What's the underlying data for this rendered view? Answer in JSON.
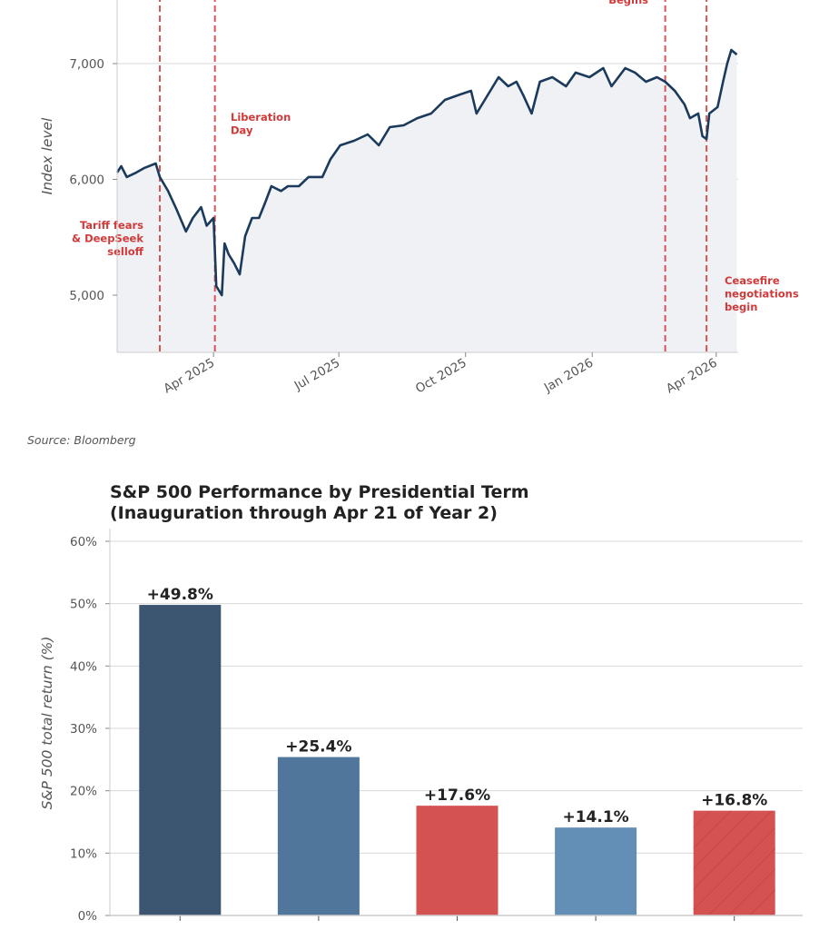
{
  "chart_data": [
    {
      "type": "line",
      "title": "",
      "xlabel": "",
      "ylabel": "Index level",
      "xlim": [
        "2025-01-21",
        "2026-04-17"
      ],
      "ylim": [
        4500,
        7550
      ],
      "grid": true,
      "yticks": [
        5000,
        6000,
        7000
      ],
      "ytick_labels": [
        "5,000",
        "6,000",
        "7,000"
      ],
      "xticks": [
        "2025-04-01",
        "2025-07-01",
        "2025-10-01",
        "2026-01-01",
        "2026-04-01"
      ],
      "xtick_labels": [
        "Apr 2025",
        "Jul 2025",
        "Oct 2025",
        "Jan 2026",
        "Apr 2026"
      ],
      "line_color": "#1b3a5c",
      "fill_color": "#eff1f4",
      "annotation_color": "#d03a3a",
      "series": [
        {
          "x": [
            "2025-01-21",
            "2025-01-24",
            "2025-01-28",
            "2025-02-04",
            "2025-02-10",
            "2025-02-18",
            "2025-02-21",
            "2025-02-27",
            "2025-03-05",
            "2025-03-12",
            "2025-03-17",
            "2025-03-23",
            "2025-03-27",
            "2025-04-01",
            "2025-04-03",
            "2025-04-07",
            "2025-04-09",
            "2025-04-12",
            "2025-04-16",
            "2025-04-20",
            "2025-04-24",
            "2025-04-29",
            "2025-05-04",
            "2025-05-08",
            "2025-05-13",
            "2025-05-20",
            "2025-05-25",
            "2025-06-02",
            "2025-06-09",
            "2025-06-19",
            "2025-06-25",
            "2025-07-02",
            "2025-07-12",
            "2025-07-22",
            "2025-07-30",
            "2025-08-07",
            "2025-08-17",
            "2025-08-27",
            "2025-09-06",
            "2025-09-16",
            "2025-09-25",
            "2025-10-05",
            "2025-10-09",
            "2025-10-15",
            "2025-10-25",
            "2025-11-01",
            "2025-11-07",
            "2025-11-12",
            "2025-11-18",
            "2025-11-24",
            "2025-12-03",
            "2025-12-13",
            "2025-12-20",
            "2025-12-30",
            "2026-01-09",
            "2026-01-15",
            "2026-01-25",
            "2026-02-01",
            "2026-02-09",
            "2026-02-17",
            "2026-02-23",
            "2026-03-02",
            "2026-03-09",
            "2026-03-13",
            "2026-03-19",
            "2026-03-22",
            "2026-03-25",
            "2026-03-27",
            "2026-04-02",
            "2026-04-06",
            "2026-04-09",
            "2026-04-12",
            "2026-04-16"
          ],
          "y": [
            6060,
            6114,
            6020,
            6060,
            6100,
            6137,
            6020,
            5900,
            5745,
            5550,
            5667,
            5760,
            5600,
            5667,
            5078,
            5000,
            5447,
            5353,
            5275,
            5180,
            5510,
            5667,
            5667,
            5784,
            5941,
            5900,
            5941,
            5941,
            6020,
            6020,
            6176,
            6294,
            6333,
            6388,
            6294,
            6451,
            6467,
            6529,
            6569,
            6686,
            6725,
            6765,
            6569,
            6686,
            6882,
            6804,
            6843,
            6725,
            6569,
            6843,
            6882,
            6804,
            6922,
            6882,
            6961,
            6804,
            6961,
            6922,
            6843,
            6882,
            6843,
            6765,
            6647,
            6529,
            6569,
            6373,
            6349,
            6569,
            6624,
            6843,
            7000,
            7118,
            7078
          ]
        }
      ],
      "events": [
        {
          "date": "2025-02-21",
          "label_lines": [
            "Tariff fears",
            "& DeepSeek",
            "selloff"
          ]
        },
        {
          "date": "2025-04-02",
          "label_lines": [
            "Liberation",
            "Day"
          ]
        },
        {
          "date": "2026-02-23",
          "label_lines": [
            "Begins"
          ]
        },
        {
          "date": "2026-03-25",
          "label_lines": [
            "Ceasefire",
            "negotiations",
            "begin"
          ]
        }
      ],
      "source": "Source: Bloomberg"
    },
    {
      "type": "bar",
      "title": "S&P 500 Performance by Presidential Term",
      "subtitle": "(Inauguration through Apr 21 of Year 2)",
      "xlabel": "",
      "ylabel": "S&P 500 total return (%)",
      "ylim": [
        0,
        60
      ],
      "grid": true,
      "yticks": [
        0,
        10,
        20,
        30,
        40,
        50,
        60
      ],
      "ytick_labels": [
        "0%",
        "10%",
        "20%",
        "30%",
        "40%",
        "50%",
        "60%"
      ],
      "values": [
        49.8,
        25.4,
        17.6,
        14.1,
        16.8
      ],
      "data_labels": [
        "+49.8%",
        "+25.4%",
        "+17.6%",
        "+14.1%",
        "+16.8%"
      ],
      "colors": [
        "#364f6b",
        "#4a7298",
        "#d44c4d",
        "#5e8ab4",
        "#d44c4d"
      ],
      "hatched": [
        false,
        false,
        false,
        false,
        true
      ]
    }
  ]
}
